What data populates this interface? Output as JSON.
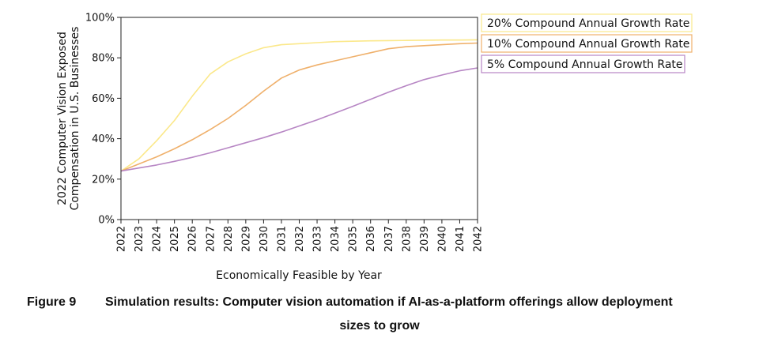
{
  "chart_data": {
    "type": "line",
    "title": "",
    "xlabel": "Economically Feasible by Year",
    "ylabel_lines": [
      "2022 Computer Vision Exposed",
      "Compensation in U.S. Businesses"
    ],
    "x": [
      2022,
      2023,
      2024,
      2025,
      2026,
      2027,
      2028,
      2029,
      2030,
      2031,
      2032,
      2033,
      2034,
      2035,
      2036,
      2037,
      2038,
      2039,
      2040,
      2041,
      2042
    ],
    "x_tick_labels": [
      "2022",
      "2023",
      "2024",
      "2025",
      "2026",
      "2027",
      "2028",
      "2029",
      "2030",
      "2031",
      "2032",
      "2033",
      "2034",
      "2035",
      "2036",
      "2037",
      "2038",
      "2039",
      "2040",
      "2041",
      "2042"
    ],
    "ylim": [
      0,
      100
    ],
    "y_tick_labels": [
      "0%",
      "20%",
      "40%",
      "60%",
      "80%",
      "100%"
    ],
    "y_ticks": [
      0,
      20,
      40,
      60,
      80,
      100
    ],
    "grid": false,
    "legend_position": "outside-right",
    "series": [
      {
        "name": "20% Compound Annual Growth Rate",
        "color": "#fbe88a",
        "values": [
          24,
          30,
          39,
          49,
          61,
          72,
          78,
          82,
          85,
          86.5,
          87,
          87.5,
          88,
          88.2,
          88.4,
          88.5,
          88.6,
          88.7,
          88.8,
          88.8,
          88.9
        ]
      },
      {
        "name": "10% Compound Annual Growth Rate",
        "color": "#efb06b",
        "values": [
          24,
          27.5,
          31,
          35,
          39.5,
          44.5,
          50,
          56.5,
          63.5,
          70,
          74,
          76.5,
          78.5,
          80.5,
          82.5,
          84.5,
          85.5,
          86,
          86.5,
          87,
          87.3
        ]
      },
      {
        "name": "5% Compound Annual Growth Rate",
        "color": "#b786c4",
        "values": [
          24,
          25.5,
          27,
          28.8,
          30.8,
          33,
          35.5,
          38,
          40.5,
          43.3,
          46.3,
          49.3,
          52.6,
          56,
          59.5,
          63,
          66.2,
          69.2,
          71.5,
          73.6,
          75
        ]
      }
    ]
  },
  "caption": {
    "label": "Figure 9",
    "line1": "Simulation results: Computer vision automation if AI-as-a-platform offerings allow deployment",
    "line2": "sizes to grow"
  }
}
